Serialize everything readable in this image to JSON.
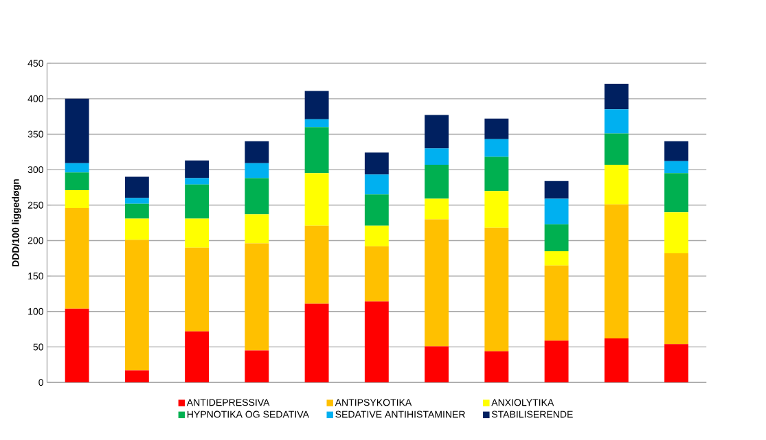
{
  "chart_data": {
    "type": "bar",
    "stacked": true,
    "ylabel": "DDD/100 liggedøgn",
    "categories": [
      null,
      null,
      null,
      null,
      null,
      null,
      null,
      null,
      null,
      null,
      null
    ],
    "ylim": [
      0,
      450
    ],
    "yticks": [
      0,
      50,
      100,
      150,
      200,
      250,
      300,
      350,
      400,
      450
    ],
    "grid": "y",
    "legend": "bottom",
    "series": [
      {
        "name": "ANTIDEPRESSIVA",
        "color": "#ff0000",
        "values": [
          104,
          17,
          72,
          45,
          111,
          114,
          51,
          44,
          59,
          62,
          54
        ]
      },
      {
        "name": "ANTIPSYKOTIKA",
        "color": "#ffc000",
        "values": [
          142,
          184,
          118,
          151,
          110,
          78,
          179,
          174,
          106,
          189,
          128
        ]
      },
      {
        "name": "ANXIOLYTIKA",
        "color": "#ffff00",
        "values": [
          25,
          30,
          41,
          41,
          74,
          29,
          29,
          52,
          20,
          56,
          58
        ]
      },
      {
        "name": "HYPNOTIKA OG SEDATIVA",
        "color": "#00b050",
        "values": [
          25,
          21,
          48,
          51,
          65,
          44,
          48,
          48,
          38,
          44,
          55
        ]
      },
      {
        "name": "SEDATIVE ANTIHISTAMINER",
        "color": "#00b0f0",
        "values": [
          13,
          8,
          9,
          21,
          11,
          28,
          23,
          25,
          36,
          34,
          17
        ]
      },
      {
        "name": "STABILISERENDE",
        "color": "#002060",
        "values": [
          91,
          30,
          25,
          31,
          40,
          31,
          47,
          29,
          25,
          36,
          28
        ]
      }
    ]
  }
}
